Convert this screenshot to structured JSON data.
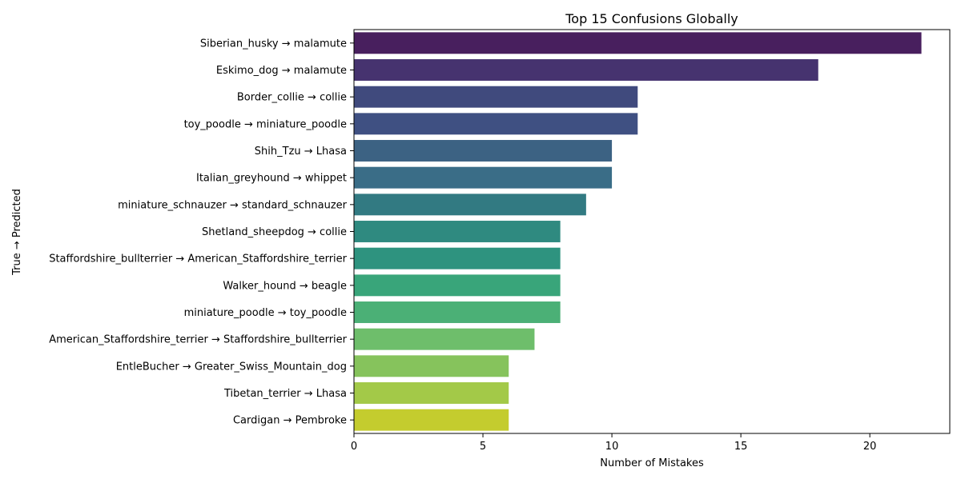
{
  "chart_data": {
    "type": "bar",
    "orientation": "horizontal",
    "title": "Top 15 Confusions Globally",
    "xlabel": "Number of Mistakes",
    "ylabel": "True → Predicted",
    "xlim": [
      0,
      23.1
    ],
    "xticks": [
      0,
      5,
      10,
      15,
      20
    ],
    "grid": false,
    "legend": "none",
    "palette": "viridis",
    "categories": [
      "Siberian_husky → malamute",
      "Eskimo_dog → malamute",
      "Border_collie → collie",
      "toy_poodle → miniature_poodle",
      "Shih_Tzu → Lhasa",
      "Italian_greyhound → whippet",
      "miniature_schnauzer → standard_schnauzer",
      "Shetland_sheepdog → collie",
      "Staffordshire_bullterrier → American_Staffordshire_terrier",
      "Walker_hound → beagle",
      "miniature_poodle → toy_poodle",
      "American_Staffordshire_terrier → Staffordshire_bullterrier",
      "EntleBucher → Greater_Swiss_Mountain_dog",
      "Tibetan_terrier → Lhasa",
      "Cardigan → Pembroke"
    ],
    "values": [
      22,
      18,
      11,
      11,
      10,
      10,
      9,
      8,
      8,
      8,
      8,
      7,
      6,
      6,
      6
    ],
    "colors": [
      "#481f5e",
      "#46336f",
      "#404a7d",
      "#3f5082",
      "#3c6283",
      "#3a6d87",
      "#327a82",
      "#2f8a80",
      "#2e937f",
      "#39a57a",
      "#4bb076",
      "#6ebe6b",
      "#86c35c",
      "#a3c948",
      "#c4cc2e"
    ]
  }
}
